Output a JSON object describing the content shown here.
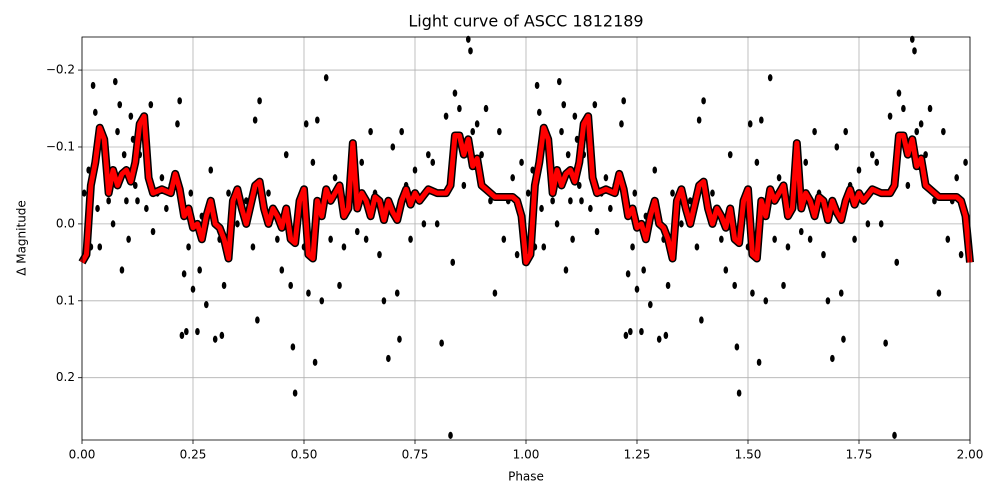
{
  "chart_data": {
    "type": "scatter",
    "title": "Light curve of ASCC 1812189",
    "xlabel": "Phase",
    "ylabel": "Δ Magnitude",
    "xlim": [
      0,
      2
    ],
    "ylim": [
      -0.243,
      0.281
    ],
    "y_inverted": true,
    "grid": true,
    "xticks": [
      {
        "value": 0,
        "label": "0.00"
      },
      {
        "value": 0.25,
        "label": "0.25"
      },
      {
        "value": 0.5,
        "label": "0.50"
      },
      {
        "value": 0.75,
        "label": "0.75"
      },
      {
        "value": 1,
        "label": "1.00"
      },
      {
        "value": 1.25,
        "label": "1.25"
      },
      {
        "value": 1.5,
        "label": "1.50"
      },
      {
        "value": 1.75,
        "label": "1.75"
      },
      {
        "value": 2,
        "label": "2.00"
      }
    ],
    "yticks": [
      {
        "value": -0.2,
        "label": "−0.2"
      },
      {
        "value": -0.1,
        "label": "−0.1"
      },
      {
        "value": 0,
        "label": "0.0"
      },
      0.1,
      0.2
    ],
    "series": [
      {
        "type": "scatter",
        "color": "#000000",
        "x": [
          0.005,
          0.01,
          0.015,
          0.02,
          0.025,
          0.03,
          0.035,
          0.04,
          0.05,
          0.055,
          0.06,
          0.07,
          0.075,
          0.08,
          0.085,
          0.09,
          0.095,
          0.1,
          0.105,
          0.11,
          0.115,
          0.12,
          0.125,
          0.13,
          0.14,
          0.145,
          0.155,
          0.16,
          0.17,
          0.18,
          0.19,
          0.2,
          0.215,
          0.22,
          0.225,
          0.23,
          0.235,
          0.24,
          0.245,
          0.25,
          0.26,
          0.265,
          0.27,
          0.28,
          0.29,
          0.3,
          0.31,
          0.315,
          0.32,
          0.33,
          0.34,
          0.35,
          0.37,
          0.385,
          0.39,
          0.395,
          0.4,
          0.42,
          0.43,
          0.44,
          0.45,
          0.46,
          0.47,
          0.475,
          0.48,
          0.49,
          0.5,
          0.505,
          0.51,
          0.52,
          0.525,
          0.53,
          0.54,
          0.55,
          0.56,
          0.57,
          0.58,
          0.59,
          0.6,
          0.62,
          0.63,
          0.64,
          0.65,
          0.66,
          0.67,
          0.68,
          0.69,
          0.7,
          0.71,
          0.715,
          0.72,
          0.73,
          0.74,
          0.75,
          0.76,
          0.77,
          0.78,
          0.79,
          0.8,
          0.81,
          0.82,
          0.83,
          0.835,
          0.84,
          0.85,
          0.86,
          0.87,
          0.875,
          0.88,
          0.89,
          0.9,
          0.91,
          0.92,
          0.93,
          0.94,
          0.95,
          0.96,
          0.97,
          0.98,
          0.99,
          0.995,
          1.005,
          1.01,
          1.015,
          1.02,
          1.025,
          1.03,
          1.035,
          1.04,
          1.05,
          1.055,
          1.06,
          1.07,
          1.075,
          1.08,
          1.085,
          1.09,
          1.095,
          1.1,
          1.105,
          1.11,
          1.115,
          1.12,
          1.125,
          1.13,
          1.14,
          1.145,
          1.155,
          1.16,
          1.17,
          1.18,
          1.19,
          1.2,
          1.215,
          1.22,
          1.225,
          1.23,
          1.235,
          1.24,
          1.245,
          1.25,
          1.26,
          1.265,
          1.27,
          1.28,
          1.29,
          1.3,
          1.31,
          1.315,
          1.32,
          1.33,
          1.34,
          1.35,
          1.37,
          1.385,
          1.39,
          1.395,
          1.4,
          1.42,
          1.43,
          1.44,
          1.45,
          1.46,
          1.47,
          1.475,
          1.48,
          1.49,
          1.5,
          1.505,
          1.51,
          1.52,
          1.525,
          1.53,
          1.54,
          1.55,
          1.56,
          1.57,
          1.58,
          1.59,
          1.6,
          1.62,
          1.63,
          1.64,
          1.65,
          1.66,
          1.67,
          1.68,
          1.69,
          1.7,
          1.71,
          1.715,
          1.72,
          1.73,
          1.74,
          1.75,
          1.76,
          1.77,
          1.78,
          1.79,
          1.8,
          1.81,
          1.82,
          1.83,
          1.835,
          1.84,
          1.85,
          1.86,
          1.87,
          1.875,
          1.88,
          1.89,
          1.9,
          1.91,
          1.92,
          1.93,
          1.94,
          1.95,
          1.96,
          1.97,
          1.98,
          1.99,
          1.995
        ],
        "values": [
          -0.04,
          0.01,
          -0.07,
          0.03,
          -0.18,
          -0.145,
          -0.02,
          0.03,
          -0.09,
          -0.06,
          -0.03,
          0,
          -0.185,
          -0.12,
          -0.155,
          0.06,
          -0.09,
          -0.03,
          0.02,
          -0.14,
          -0.11,
          -0.05,
          -0.03,
          -0.09,
          -0.12,
          -0.02,
          -0.155,
          0.01,
          -0.04,
          -0.06,
          -0.02,
          -0.05,
          -0.13,
          -0.16,
          0.145,
          0.065,
          0.14,
          0.03,
          -0.04,
          0.085,
          0.14,
          0.06,
          -0.01,
          0.105,
          -0.07,
          0.15,
          0.02,
          0.145,
          0.08,
          -0.04,
          -0.02,
          0,
          -0.03,
          0.03,
          -0.135,
          0.125,
          -0.16,
          -0.04,
          -0.01,
          0.02,
          0.06,
          -0.09,
          0.08,
          0.16,
          0.22,
          -0.03,
          0.03,
          -0.13,
          0.09,
          -0.08,
          0.18,
          -0.135,
          0.1,
          -0.19,
          0.02,
          -0.06,
          0.08,
          0.03,
          -0.02,
          0.01,
          -0.08,
          0.02,
          -0.12,
          -0.04,
          0.04,
          0.1,
          0.175,
          -0.1,
          0.09,
          0.15,
          -0.12,
          -0.05,
          0.02,
          -0.07,
          -0.03,
          0,
          -0.09,
          -0.08,
          0,
          0.155,
          -0.14,
          0.275,
          0.05,
          -0.17,
          -0.15,
          -0.05,
          -0.24,
          -0.225,
          -0.12,
          -0.13,
          -0.09,
          -0.15,
          -0.03,
          0.09,
          -0.12,
          0.02,
          -0.03,
          -0.06,
          0.04,
          -0.08,
          0.02,
          -0.04,
          0.01,
          -0.07,
          0.03,
          -0.18,
          -0.145,
          -0.02,
          0.03,
          -0.09,
          -0.06,
          -0.03,
          0,
          -0.185,
          -0.12,
          -0.155,
          0.06,
          -0.09,
          -0.03,
          0.02,
          -0.14,
          -0.11,
          -0.05,
          -0.03,
          -0.09,
          -0.12,
          -0.02,
          -0.155,
          0.01,
          -0.04,
          -0.06,
          -0.02,
          -0.05,
          -0.13,
          -0.16,
          0.145,
          0.065,
          0.14,
          0.03,
          -0.04,
          0.085,
          0.14,
          0.06,
          -0.01,
          0.105,
          -0.07,
          0.15,
          0.02,
          0.145,
          0.08,
          -0.04,
          -0.02,
          0,
          -0.03,
          0.03,
          -0.135,
          0.125,
          -0.16,
          -0.04,
          -0.01,
          0.02,
          0.06,
          -0.09,
          0.08,
          0.16,
          0.22,
          -0.03,
          0.03,
          -0.13,
          0.09,
          -0.08,
          0.18,
          -0.135,
          0.1,
          -0.19,
          0.02,
          -0.06,
          0.08,
          0.03,
          -0.02,
          0.01,
          -0.08,
          0.02,
          -0.12,
          -0.04,
          0.04,
          0.1,
          0.175,
          -0.1,
          0.09,
          0.15,
          -0.12,
          -0.05,
          0.02,
          -0.07,
          -0.03,
          0,
          -0.09,
          -0.08,
          0,
          0.155,
          -0.14,
          0.275,
          0.05,
          -0.17,
          -0.15,
          -0.05,
          -0.24,
          -0.225,
          -0.12,
          -0.13,
          -0.09,
          -0.15,
          -0.03,
          0.09,
          -0.12,
          0.02,
          -0.03,
          -0.06,
          0.04,
          -0.08,
          0.02
        ]
      },
      {
        "type": "line",
        "color": "#ff0000",
        "x": [
          0,
          0.01,
          0.02,
          0.03,
          0.04,
          0.05,
          0.06,
          0.07,
          0.08,
          0.09,
          0.1,
          0.11,
          0.12,
          0.13,
          0.14,
          0.15,
          0.16,
          0.18,
          0.2,
          0.21,
          0.22,
          0.23,
          0.24,
          0.25,
          0.26,
          0.27,
          0.28,
          0.29,
          0.3,
          0.31,
          0.32,
          0.33,
          0.34,
          0.35,
          0.36,
          0.37,
          0.38,
          0.39,
          0.4,
          0.41,
          0.42,
          0.43,
          0.44,
          0.45,
          0.46,
          0.47,
          0.48,
          0.49,
          0.5,
          0.51,
          0.52,
          0.53,
          0.54,
          0.55,
          0.56,
          0.57,
          0.58,
          0.59,
          0.6,
          0.61,
          0.62,
          0.63,
          0.64,
          0.65,
          0.66,
          0.67,
          0.68,
          0.69,
          0.7,
          0.71,
          0.72,
          0.73,
          0.74,
          0.75,
          0.76,
          0.78,
          0.8,
          0.82,
          0.83,
          0.84,
          0.85,
          0.86,
          0.87,
          0.88,
          0.89,
          0.9,
          0.91,
          0.92,
          0.93,
          0.95,
          0.97,
          0.98,
          0.99,
          1,
          1.01,
          1.02,
          1.03,
          1.04,
          1.05,
          1.06,
          1.07,
          1.08,
          1.09,
          1.1,
          1.11,
          1.12,
          1.13,
          1.14,
          1.15,
          1.16,
          1.18,
          1.2,
          1.21,
          1.22,
          1.23,
          1.24,
          1.25,
          1.26,
          1.27,
          1.28,
          1.29,
          1.3,
          1.31,
          1.32,
          1.33,
          1.34,
          1.35,
          1.36,
          1.37,
          1.38,
          1.39,
          1.4,
          1.41,
          1.42,
          1.43,
          1.44,
          1.45,
          1.46,
          1.47,
          1.48,
          1.49,
          1.5,
          1.51,
          1.52,
          1.53,
          1.54,
          1.55,
          1.56,
          1.57,
          1.58,
          1.59,
          1.6,
          1.61,
          1.62,
          1.63,
          1.64,
          1.65,
          1.66,
          1.67,
          1.68,
          1.69,
          1.7,
          1.71,
          1.72,
          1.73,
          1.74,
          1.75,
          1.76,
          1.78,
          1.8,
          1.82,
          1.83,
          1.84,
          1.85,
          1.86,
          1.87,
          1.88,
          1.89,
          1.9,
          1.91,
          1.92,
          1.93,
          1.95,
          1.97,
          1.98,
          1.99,
          2
        ],
        "values": [
          0.05,
          0.04,
          -0.05,
          -0.08,
          -0.125,
          -0.11,
          -0.04,
          -0.07,
          -0.05,
          -0.065,
          -0.07,
          -0.055,
          -0.08,
          -0.13,
          -0.14,
          -0.06,
          -0.04,
          -0.045,
          -0.04,
          -0.065,
          -0.045,
          -0.01,
          -0.02,
          0.005,
          0,
          0.02,
          -0.01,
          -0.03,
          0,
          0.005,
          0.02,
          0.045,
          -0.03,
          -0.045,
          -0.02,
          0,
          -0.025,
          -0.05,
          -0.055,
          -0.02,
          0,
          -0.02,
          -0.01,
          0.005,
          -0.02,
          0.02,
          0.025,
          -0.03,
          -0.045,
          0.04,
          0.045,
          -0.03,
          -0.01,
          -0.045,
          -0.03,
          -0.04,
          -0.05,
          -0.01,
          -0.02,
          -0.105,
          -0.02,
          -0.04,
          -0.03,
          -0.01,
          -0.035,
          -0.03,
          -0.005,
          -0.03,
          -0.015,
          -0.005,
          -0.03,
          -0.045,
          -0.025,
          -0.04,
          -0.03,
          -0.045,
          -0.04,
          -0.04,
          -0.05,
          -0.115,
          -0.115,
          -0.09,
          -0.11,
          -0.075,
          -0.085,
          -0.05,
          -0.045,
          -0.04,
          -0.035,
          -0.035,
          -0.035,
          -0.03,
          -0.01,
          0.05,
          0.04,
          -0.05,
          -0.08,
          -0.125,
          -0.11,
          -0.04,
          -0.07,
          -0.05,
          -0.065,
          -0.07,
          -0.055,
          -0.08,
          -0.13,
          -0.14,
          -0.06,
          -0.04,
          -0.045,
          -0.04,
          -0.065,
          -0.045,
          -0.01,
          -0.02,
          0.005,
          0,
          0.02,
          -0.01,
          -0.03,
          0,
          0.005,
          0.02,
          0.045,
          -0.03,
          -0.045,
          -0.02,
          0,
          -0.025,
          -0.05,
          -0.055,
          -0.02,
          0,
          -0.02,
          -0.01,
          0.005,
          -0.02,
          0.02,
          0.025,
          -0.03,
          -0.045,
          0.04,
          0.045,
          -0.03,
          -0.01,
          -0.045,
          -0.03,
          -0.04,
          -0.05,
          -0.01,
          -0.02,
          -0.105,
          -0.02,
          -0.04,
          -0.03,
          -0.01,
          -0.035,
          -0.03,
          -0.005,
          -0.03,
          -0.015,
          -0.005,
          -0.03,
          -0.045,
          -0.025,
          -0.04,
          -0.03,
          -0.045,
          -0.04,
          -0.04,
          -0.05,
          -0.115,
          -0.115,
          -0.09,
          -0.11,
          -0.075,
          -0.085,
          -0.05,
          -0.045,
          -0.04,
          -0.035,
          -0.035,
          -0.035,
          -0.03,
          -0.01,
          0.05
        ]
      }
    ]
  }
}
